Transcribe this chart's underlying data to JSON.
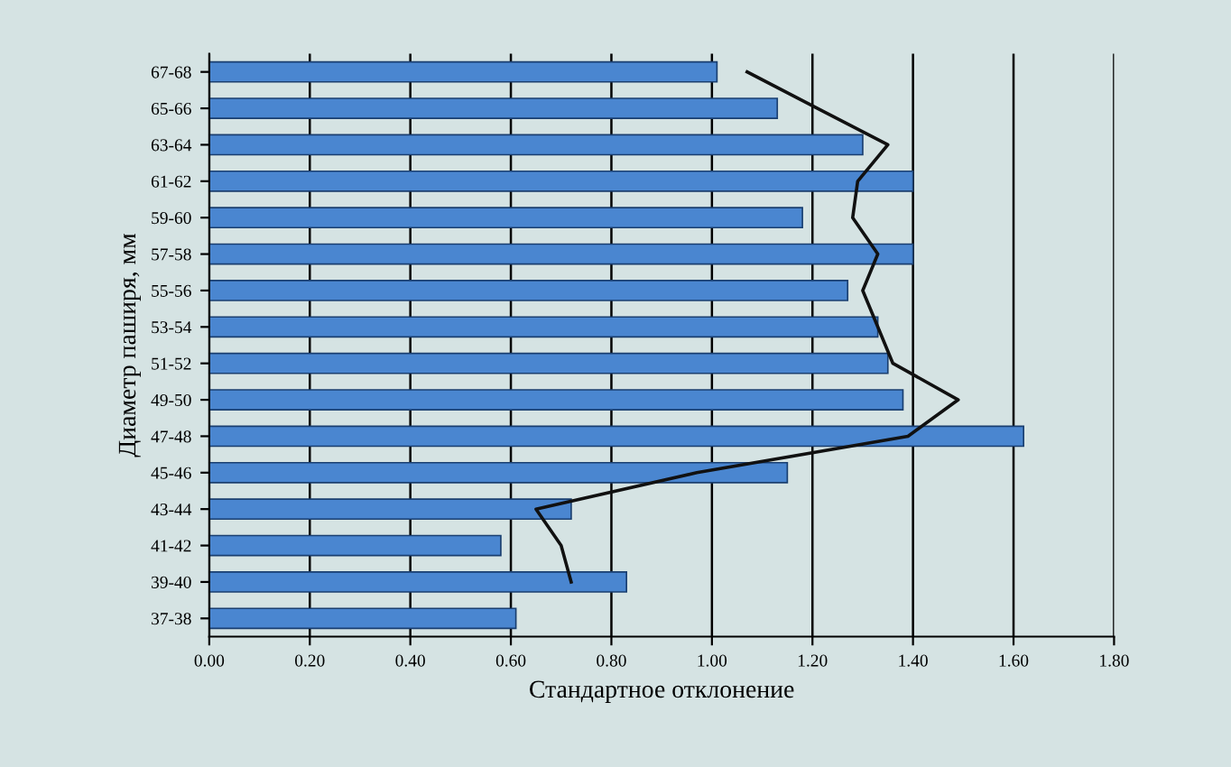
{
  "chart_data": {
    "type": "bar",
    "orientation": "horizontal",
    "xlabel": "Стандартное отклонение",
    "ylabel": "Диаметр паширя, мм",
    "categories": [
      "67-68",
      "65-66",
      "63-64",
      "61-62",
      "59-60",
      "57-58",
      "55-56",
      "53-54",
      "51-52",
      "49-50",
      "47-48",
      "45-46",
      "43-44",
      "41-42",
      "39-40",
      "37-38"
    ],
    "series": [
      {
        "color": "#4a86d0",
        "values": [
          1.01,
          1.13,
          1.3,
          1.4,
          1.18,
          1.4,
          1.27,
          1.33,
          1.35,
          1.38,
          1.62,
          1.15,
          0.72,
          0.58,
          0.83,
          0.61
        ]
      },
      {
        "type": "line",
        "color": "#111111",
        "values": [
          1.07,
          1.21,
          1.35,
          1.29,
          1.28,
          1.33,
          1.3,
          1.33,
          1.36,
          1.49,
          1.39,
          0.97,
          0.65,
          0.7,
          0.72,
          null
        ]
      }
    ],
    "xlim": [
      0,
      1.8
    ],
    "xticks": [
      {
        "value": 0,
        "label": "0.00"
      },
      {
        "value": 0.2,
        "label": "0.20"
      },
      {
        "value": 0.4,
        "label": "0.40"
      },
      {
        "value": 0.6,
        "label": "0.60"
      },
      {
        "value": 0.8,
        "label": "0.80"
      },
      {
        "value": 1.0,
        "label": "1.00"
      },
      {
        "value": 1.2,
        "label": "1.20"
      },
      {
        "value": 1.4,
        "label": "1.40"
      },
      {
        "value": 1.6,
        "label": "1.60"
      },
      {
        "value": 1.8,
        "label": "1.80"
      }
    ],
    "grid": "x",
    "legend": false
  }
}
